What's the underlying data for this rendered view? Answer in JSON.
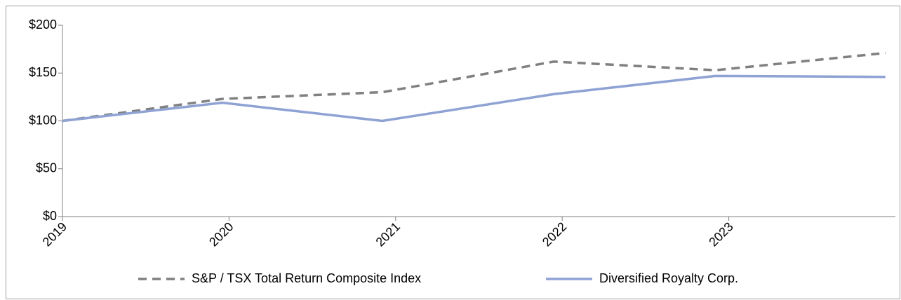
{
  "chart_data": {
    "type": "line",
    "x": [
      2019,
      2019.96,
      2020.92,
      2021.95,
      2022.92,
      2023.94
    ],
    "xlim": [
      2019,
      2024
    ],
    "xticks": [
      2019,
      2020,
      2021,
      2022,
      2023
    ],
    "ylim": [
      0,
      200
    ],
    "yticks": [
      {
        "value": 0,
        "label": "$0"
      },
      {
        "value": 50,
        "label": "$50"
      },
      {
        "value": 100,
        "label": "$100"
      },
      {
        "value": 150,
        "label": "$150"
      },
      {
        "value": 200,
        "label": "$200"
      }
    ],
    "series": [
      {
        "name": "S&P / TSX Total Return Composite Index",
        "color": "#808080",
        "dashed": true,
        "values": [
          100,
          123,
          130,
          162,
          153,
          171
        ]
      },
      {
        "name": "Diversified Royalty Corp.",
        "color": "#8fa2d4",
        "dashed": false,
        "values": [
          100,
          119,
          100,
          128,
          147,
          146
        ]
      }
    ],
    "legend": "bottom"
  }
}
